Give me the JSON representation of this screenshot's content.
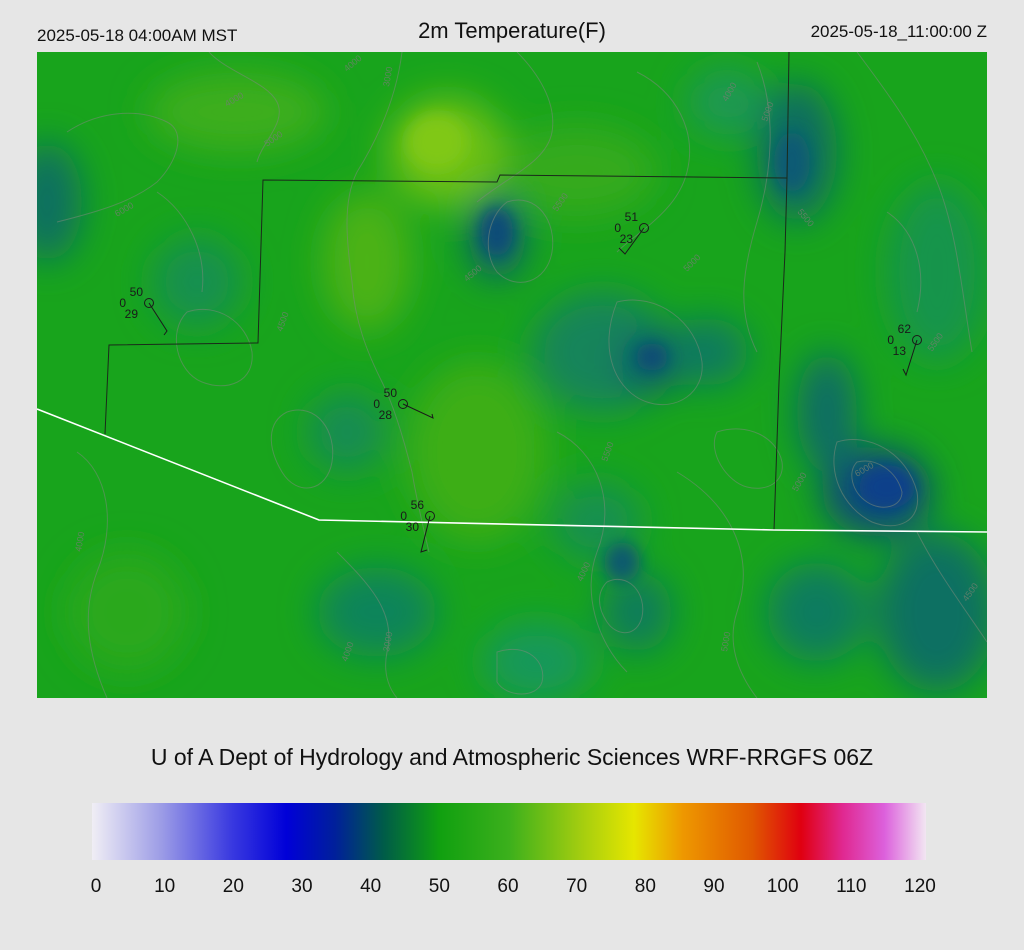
{
  "header": {
    "local_time": "2025-05-18 04:00AM MST",
    "title": "2m Temperature(F)",
    "valid_time_utc": "2025-05-18_11:00:00 Z"
  },
  "credit": "U of A Dept of Hydrology and Atmospheric Sciences WRF-RRGFS 06Z",
  "colorbar": {
    "ticks": [
      "0",
      "10",
      "20",
      "30",
      "40",
      "50",
      "60",
      "70",
      "80",
      "90",
      "100",
      "110",
      "120"
    ],
    "range": [
      0,
      120
    ],
    "stops": [
      {
        "value": 0,
        "color": "#f0eef5"
      },
      {
        "value": 10,
        "color": "#9c9ce6"
      },
      {
        "value": 20,
        "color": "#3a3ae0"
      },
      {
        "value": 28,
        "color": "#0000d8"
      },
      {
        "value": 35,
        "color": "#00209a"
      },
      {
        "value": 42,
        "color": "#005c48"
      },
      {
        "value": 50,
        "color": "#10a010"
      },
      {
        "value": 60,
        "color": "#3cb01c"
      },
      {
        "value": 70,
        "color": "#a0cc10"
      },
      {
        "value": 78,
        "color": "#e6e600"
      },
      {
        "value": 85,
        "color": "#ee9800"
      },
      {
        "value": 95,
        "color": "#e05800"
      },
      {
        "value": 102,
        "color": "#e00010"
      },
      {
        "value": 108,
        "color": "#e02890"
      },
      {
        "value": 114,
        "color": "#dc60dc"
      },
      {
        "value": 120,
        "color": "#f2e6f2"
      }
    ]
  },
  "map": {
    "base_color": "#18a41c",
    "stations": [
      {
        "id": "st1",
        "temp": "50",
        "mid": "0",
        "dew": "29"
      },
      {
        "id": "st2",
        "temp": "51",
        "mid": "0",
        "dew": "23"
      },
      {
        "id": "st3",
        "temp": "50",
        "mid": "0",
        "dew": "28"
      },
      {
        "id": "st4",
        "temp": "56",
        "mid": "0",
        "dew": "30"
      },
      {
        "id": "st5",
        "temp": "62",
        "mid": "0",
        "dew": "13"
      }
    ],
    "contour_labels": [
      "4000",
      "3000",
      "5500",
      "5000",
      "4500",
      "6000",
      "5000",
      "4000",
      "4500",
      "5000",
      "6000",
      "5500",
      "5500",
      "5000",
      "4000",
      "4000",
      "3000",
      "4500",
      "5500",
      "4000",
      "5000",
      "4000"
    ]
  }
}
